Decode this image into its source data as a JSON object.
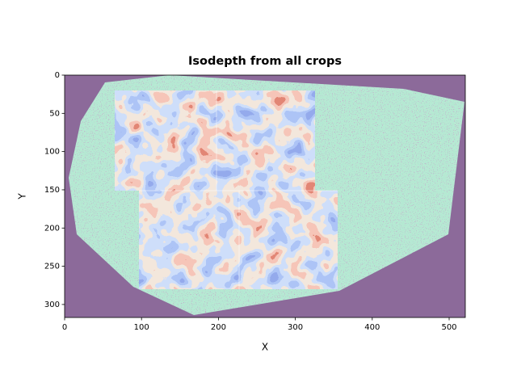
{
  "chart_data": {
    "type": "image",
    "title": "Isodepth from all crops",
    "xlabel": "X",
    "ylabel": "Y",
    "xlim": [
      0,
      521
    ],
    "ylim": [
      317,
      0
    ],
    "xticks": [
      0,
      100,
      200,
      300,
      400,
      500
    ],
    "yticks": [
      0,
      50,
      100,
      150,
      200,
      250,
      300
    ]
  }
}
